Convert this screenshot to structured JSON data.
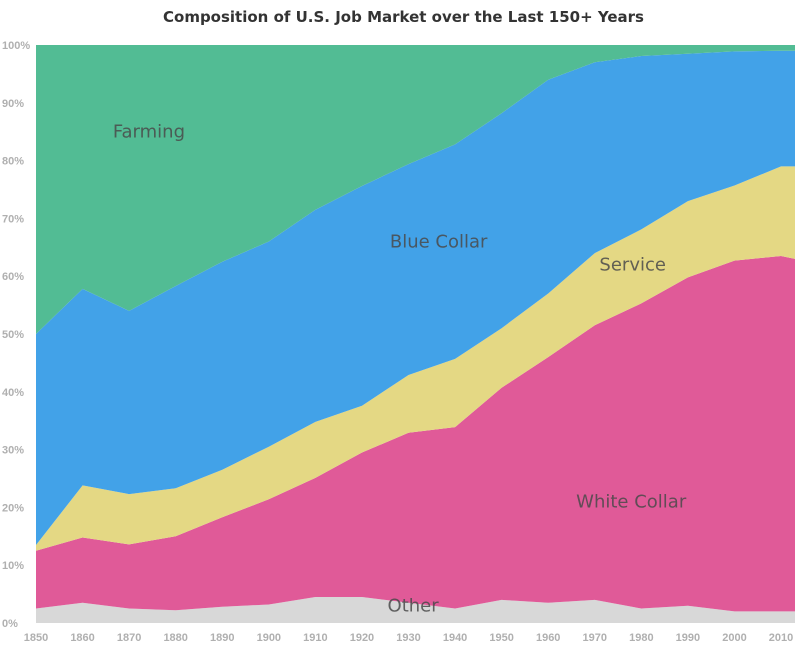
{
  "chart_data": {
    "type": "area",
    "stacked": true,
    "title": "Composition of U.S. Job Market over the Last 150+ Years",
    "xlabel": "",
    "ylabel": "",
    "ylim": [
      0,
      100
    ],
    "x": [
      1850,
      1860,
      1870,
      1880,
      1890,
      1900,
      1910,
      1920,
      1930,
      1940,
      1950,
      1960,
      1970,
      1980,
      1990,
      2000,
      2010,
      2013
    ],
    "x_tick_labels": [
      "1850",
      "1860",
      "1870",
      "1880",
      "1890",
      "1900",
      "1910",
      "1920",
      "1930",
      "1940",
      "1950",
      "1960",
      "1970",
      "1980",
      "1990",
      "2000",
      "2010"
    ],
    "y_tick_labels": [
      "0%",
      "10%",
      "20%",
      "30%",
      "40%",
      "50%",
      "60%",
      "70%",
      "80%",
      "90%",
      "100%"
    ],
    "series": [
      {
        "name": "Other",
        "label": "Other",
        "color": "#d8d8d8",
        "values": [
          2.5,
          3.5,
          2.5,
          2.2,
          2.8,
          3.2,
          4.5,
          4.5,
          3.5,
          2.5,
          4,
          3.5,
          4,
          2.5,
          3,
          2,
          2,
          2
        ]
      },
      {
        "name": "White Collar",
        "label": "White Collar",
        "color": "#e05a98",
        "values": [
          10,
          11.3,
          11.1,
          12.8,
          15.5,
          18.2,
          20.6,
          25,
          29.4,
          31.4,
          36.7,
          42.5,
          47.5,
          52.8,
          56.8,
          60.7,
          61.5,
          61
        ]
      },
      {
        "name": "Service",
        "label": "Service",
        "color": "#e4d884",
        "values": [
          1,
          9,
          8.7,
          8.3,
          8.2,
          9.1,
          9.7,
          8.1,
          10,
          11.8,
          10.3,
          11,
          12.5,
          12.8,
          13.2,
          13,
          15.5,
          16
        ]
      },
      {
        "name": "Blue Collar",
        "label": "Blue Collar",
        "color": "#42a2e8",
        "values": [
          36.5,
          34,
          31.7,
          35,
          36,
          35.5,
          36.7,
          38,
          36.5,
          37.1,
          37.2,
          37,
          33,
          30,
          25.5,
          23.2,
          20,
          20
        ]
      },
      {
        "name": "Farming",
        "label": "Farming",
        "color": "#52bc94",
        "values": [
          50,
          42.2,
          46,
          41.7,
          37.5,
          34,
          28.5,
          24.4,
          20.6,
          17.2,
          11.8,
          6,
          3,
          1.9,
          1.5,
          1.1,
          1,
          1
        ]
      }
    ],
    "grid": false,
    "legend": "inline labels"
  }
}
